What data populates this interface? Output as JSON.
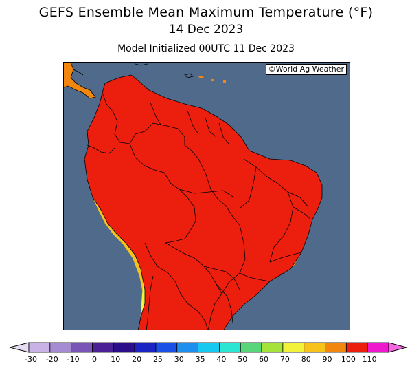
{
  "header": {
    "title": "GEFS Ensemble Mean Maximum Temperature (°F)",
    "valid_date": "14 Dec 2023",
    "init": "Model Initialized 00UTC 11 Dec 2023"
  },
  "map": {
    "credit": "©World Ag Weather",
    "region": "South America"
  },
  "legend": {
    "ticks": [
      "-30",
      "-20",
      "-10",
      "0",
      "10",
      "20",
      "25",
      "30",
      "35",
      "40",
      "50",
      "60",
      "70",
      "80",
      "90",
      "100",
      "110"
    ],
    "colors": [
      "#c9b3e6",
      "#a58bd2",
      "#7a55b8",
      "#4b1f96",
      "#2a0e8a",
      "#1a23c4",
      "#1a50e6",
      "#1f8fef",
      "#17c8f0",
      "#2ae6d3",
      "#5ad67a",
      "#a6e33a",
      "#f2f23a",
      "#f7c21c",
      "#f2870f",
      "#ec1f0f",
      "#ef18ce"
    ],
    "left_arrow_color": "#e6dcf4",
    "right_arrow_color": "#f268e0"
  },
  "colors": {
    "ocean": "#4f6a8b",
    "hot_red": "#ec1f0f",
    "magenta": "#ef18ce",
    "orange": "#f2870f",
    "light_orange": "#f7c21c",
    "yellow": "#f2f23a",
    "green": "#a6e33a"
  }
}
